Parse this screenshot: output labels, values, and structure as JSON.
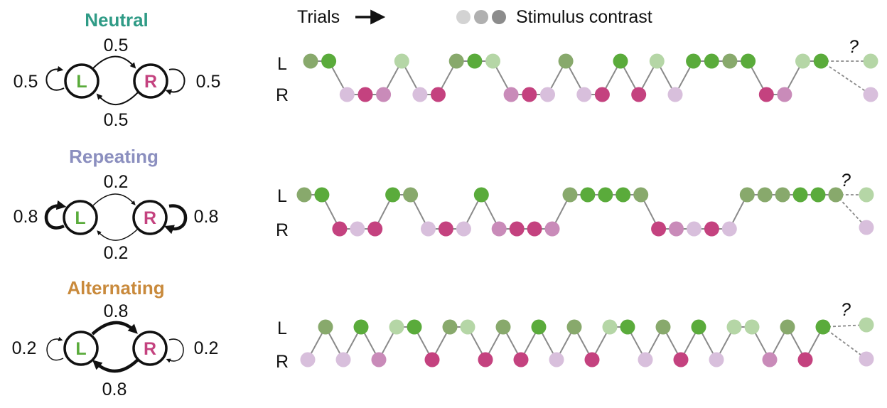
{
  "header": {
    "trials_label": "Trials",
    "contrast_label": "Stimulus contrast",
    "contrast_swatches": [
      "#d3d3d3",
      "#b0b0b0",
      "#8c8c8c"
    ]
  },
  "row_labels": {
    "left": "L",
    "right": "R"
  },
  "question_mark": "?",
  "colors": {
    "L": [
      "#b5d6a6",
      "#88a96c",
      "#5aab3b"
    ],
    "R": [
      "#d8bfdc",
      "#c98bb9",
      "#c4427f"
    ],
    "line": "#8a8a8a"
  },
  "blocks": [
    {
      "title": "Neutral",
      "title_color": "#2f9b86",
      "state_left": "L",
      "state_right": "R",
      "left_color": "#5aab3b",
      "right_color": "#c4427f",
      "p_top": "0.5",
      "p_bottom": "0.5",
      "p_left": "0.5",
      "p_right": "0.5",
      "self_weight": "thin",
      "cross_weight": "thin",
      "sequence": [
        [
          "L",
          1
        ],
        [
          "L",
          2
        ],
        [
          "R",
          0
        ],
        [
          "R",
          2
        ],
        [
          "R",
          1
        ],
        [
          "L",
          0
        ],
        [
          "R",
          0
        ],
        [
          "R",
          2
        ],
        [
          "L",
          1
        ],
        [
          "L",
          2
        ],
        [
          "L",
          0
        ],
        [
          "R",
          1
        ],
        [
          "R",
          2
        ],
        [
          "R",
          0
        ],
        [
          "L",
          1
        ],
        [
          "R",
          0
        ],
        [
          "R",
          2
        ],
        [
          "L",
          2
        ],
        [
          "R",
          2
        ],
        [
          "L",
          0
        ],
        [
          "R",
          0
        ],
        [
          "L",
          2
        ],
        [
          "L",
          2
        ],
        [
          "L",
          1
        ],
        [
          "L",
          2
        ],
        [
          "R",
          2
        ],
        [
          "R",
          1
        ],
        [
          "L",
          0
        ],
        [
          "L",
          2
        ]
      ],
      "next_options": [
        [
          "L",
          0
        ],
        [
          "R",
          0
        ]
      ]
    },
    {
      "title": "Repeating",
      "title_color": "#8b8fbf",
      "state_left": "L",
      "state_right": "R",
      "left_color": "#5aab3b",
      "right_color": "#c4427f",
      "p_top": "0.2",
      "p_bottom": "0.2",
      "p_left": "0.8",
      "p_right": "0.8",
      "self_weight": "thick",
      "cross_weight": "thin",
      "sequence": [
        [
          "L",
          1
        ],
        [
          "L",
          2
        ],
        [
          "R",
          2
        ],
        [
          "R",
          0
        ],
        [
          "R",
          2
        ],
        [
          "L",
          2
        ],
        [
          "L",
          1
        ],
        [
          "R",
          0
        ],
        [
          "R",
          2
        ],
        [
          "R",
          0
        ],
        [
          "L",
          2
        ],
        [
          "R",
          1
        ],
        [
          "R",
          2
        ],
        [
          "R",
          2
        ],
        [
          "R",
          1
        ],
        [
          "L",
          1
        ],
        [
          "L",
          2
        ],
        [
          "L",
          2
        ],
        [
          "L",
          2
        ],
        [
          "L",
          1
        ],
        [
          "R",
          2
        ],
        [
          "R",
          1
        ],
        [
          "R",
          0
        ],
        [
          "R",
          2
        ],
        [
          "R",
          0
        ],
        [
          "L",
          1
        ],
        [
          "L",
          1
        ],
        [
          "L",
          1
        ],
        [
          "L",
          2
        ],
        [
          "L",
          2
        ],
        [
          "L",
          1
        ]
      ],
      "next_options": [
        [
          "L",
          0
        ],
        [
          "R",
          0
        ]
      ]
    },
    {
      "title": "Alternating",
      "title_color": "#c98a3c",
      "state_left": "L",
      "state_right": "R",
      "left_color": "#5aab3b",
      "right_color": "#c4427f",
      "p_top": "0.8",
      "p_bottom": "0.8",
      "p_left": "0.2",
      "p_right": "0.2",
      "self_weight": "thin",
      "cross_weight": "thick",
      "sequence": [
        [
          "R",
          0
        ],
        [
          "L",
          1
        ],
        [
          "R",
          0
        ],
        [
          "L",
          2
        ],
        [
          "R",
          1
        ],
        [
          "L",
          0
        ],
        [
          "L",
          2
        ],
        [
          "R",
          2
        ],
        [
          "L",
          1
        ],
        [
          "L",
          0
        ],
        [
          "R",
          2
        ],
        [
          "L",
          1
        ],
        [
          "R",
          2
        ],
        [
          "L",
          2
        ],
        [
          "R",
          0
        ],
        [
          "L",
          1
        ],
        [
          "R",
          2
        ],
        [
          "L",
          0
        ],
        [
          "L",
          2
        ],
        [
          "R",
          0
        ],
        [
          "L",
          1
        ],
        [
          "R",
          2
        ],
        [
          "L",
          2
        ],
        [
          "R",
          0
        ],
        [
          "L",
          0
        ],
        [
          "L",
          0
        ],
        [
          "R",
          1
        ],
        [
          "L",
          1
        ],
        [
          "R",
          2
        ],
        [
          "L",
          2
        ]
      ],
      "next_options": [
        [
          "L",
          0
        ],
        [
          "R",
          0
        ]
      ]
    }
  ]
}
